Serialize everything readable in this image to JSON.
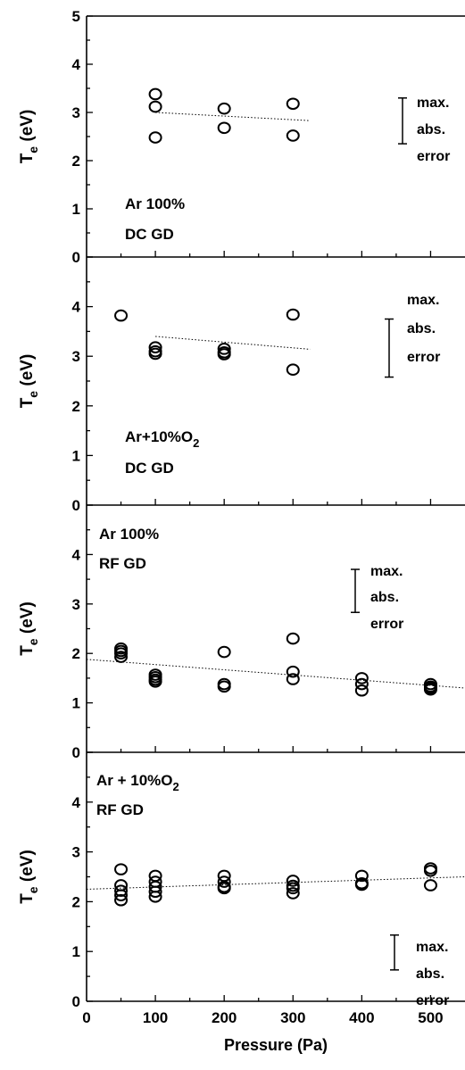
{
  "chart_data": [
    {
      "type": "scatter",
      "panel_label": [
        "Ar 100%",
        "DC GD"
      ],
      "ylabel": "T",
      "ylabel_sub": "e",
      "ylabel_unit": "(eV)",
      "ylim": [
        0,
        5
      ],
      "yticks": [
        "0",
        "1",
        "2",
        "3",
        "4",
        "5"
      ],
      "xlim": [
        0,
        550
      ],
      "series": [
        {
          "x": [
            100,
            100,
            100,
            200,
            200,
            300,
            300
          ],
          "y": [
            3.38,
            3.12,
            2.48,
            3.08,
            2.68,
            3.18,
            2.52
          ]
        }
      ],
      "fit_line": {
        "x": [
          100,
          325
        ],
        "y": [
          3.0,
          2.83
        ]
      },
      "error_bar": {
        "low": 2.35,
        "high": 3.3,
        "text": [
          "max.",
          "abs.",
          "error"
        ]
      }
    },
    {
      "type": "scatter",
      "panel_label": [
        "Ar+10%O",
        "2",
        "DC GD"
      ],
      "ylabel": "T",
      "ylabel_sub": "e",
      "ylabel_unit": "(eV)",
      "ylim": [
        0,
        5
      ],
      "yticks": [
        "0",
        "1",
        "2",
        "3",
        "4"
      ],
      "xlim": [
        0,
        550
      ],
      "series": [
        {
          "x": [
            50,
            100,
            100,
            100,
            200,
            200,
            200,
            300,
            300
          ],
          "y": [
            3.82,
            3.18,
            3.1,
            3.05,
            3.15,
            3.08,
            3.04,
            3.84,
            2.73
          ]
        }
      ],
      "fit_line": {
        "x": [
          100,
          325
        ],
        "y": [
          3.4,
          3.14
        ]
      },
      "error_bar": {
        "low": 2.58,
        "high": 3.75,
        "text": [
          "max.",
          "abs.",
          "error"
        ]
      }
    },
    {
      "type": "scatter",
      "panel_label": [
        "Ar 100%",
        "RF GD"
      ],
      "ylabel": "T",
      "ylabel_sub": "e",
      "ylabel_unit": "(eV)",
      "ylim": [
        0,
        5
      ],
      "yticks": [
        "0",
        "1",
        "2",
        "3",
        "4"
      ],
      "xlim": [
        0,
        550
      ],
      "series": [
        {
          "x": [
            50,
            50,
            50,
            50,
            100,
            100,
            100,
            100,
            200,
            200,
            200,
            300,
            300,
            300,
            400,
            400,
            400,
            500,
            500,
            500,
            500
          ],
          "y": [
            2.1,
            2.05,
            2.0,
            1.93,
            1.57,
            1.52,
            1.47,
            1.43,
            2.03,
            1.38,
            1.33,
            2.3,
            1.63,
            1.48,
            1.5,
            1.38,
            1.25,
            1.38,
            1.33,
            1.3,
            1.27
          ]
        }
      ],
      "fit_line": {
        "x": [
          0,
          550
        ],
        "y": [
          1.88,
          1.3
        ]
      },
      "error_bar": {
        "low": 2.83,
        "high": 3.7,
        "text": [
          "max.",
          "abs.",
          "error"
        ]
      }
    },
    {
      "type": "scatter",
      "panel_label": [
        "Ar + 10%O",
        "2",
        "RF GD"
      ],
      "ylabel": "T",
      "ylabel_sub": "e",
      "ylabel_unit": "(eV)",
      "ylim": [
        0,
        5
      ],
      "yticks": [
        "0",
        "1",
        "2",
        "3",
        "4"
      ],
      "xlim": [
        0,
        550
      ],
      "xticks": [
        "0",
        "100",
        "200",
        "300",
        "400",
        "500"
      ],
      "xlabel": "Pressure (Pa)",
      "series": [
        {
          "x": [
            50,
            50,
            50,
            50,
            50,
            100,
            100,
            100,
            100,
            100,
            200,
            200,
            200,
            200,
            300,
            300,
            300,
            300,
            400,
            400,
            400,
            500,
            500,
            500
          ],
          "y": [
            2.65,
            2.33,
            2.22,
            2.13,
            2.03,
            2.52,
            2.4,
            2.3,
            2.2,
            2.1,
            2.52,
            2.4,
            2.3,
            2.27,
            2.42,
            2.32,
            2.27,
            2.17,
            2.52,
            2.37,
            2.34,
            2.67,
            2.62,
            2.33
          ]
        }
      ],
      "fit_line": {
        "x": [
          0,
          550
        ],
        "y": [
          2.25,
          2.5
        ]
      },
      "error_bar": {
        "low": 0.63,
        "high": 1.33,
        "text": [
          "max.",
          "abs.",
          "error"
        ]
      }
    }
  ]
}
